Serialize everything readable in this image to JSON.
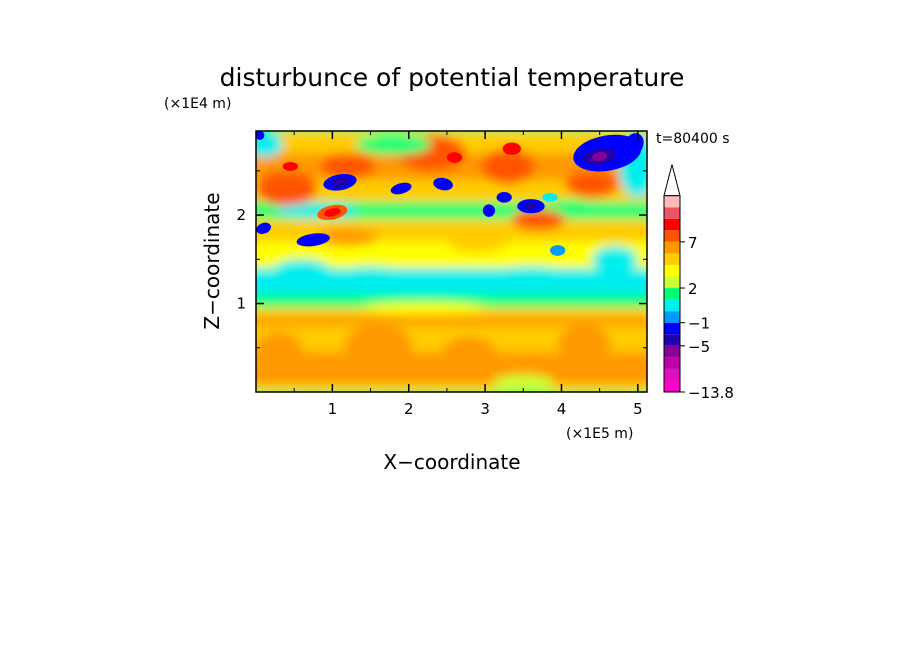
{
  "chart_data": {
    "type": "heatmap",
    "title": "disturbunce of potential temperature",
    "time_label": "t=80400 s",
    "xlabel": "X−coordinate",
    "ylabel": "Z−coordinate",
    "x_scale_label": "(×1E5 m)",
    "y_scale_label": "(×1E4 m)",
    "xlim": [
      0,
      5.12
    ],
    "ylim": [
      0,
      2.95
    ],
    "x_ticks": [
      {
        "value": 1,
        "label": "1"
      },
      {
        "value": 2,
        "label": "2"
      },
      {
        "value": 3,
        "label": "3"
      },
      {
        "value": 4,
        "label": "4"
      },
      {
        "value": 5,
        "label": "5"
      }
    ],
    "y_ticks": [
      {
        "value": 1,
        "label": "1"
      },
      {
        "value": 2,
        "label": "2"
      }
    ],
    "colorbar": {
      "colors_bottom_to_top": [
        "#ff00cc",
        "#dd11bb",
        "#bb00aa",
        "#880099",
        "#2200aa",
        "#0000ff",
        "#0099ff",
        "#00eeee",
        "#00ff77",
        "#ccff33",
        "#ffff00",
        "#ffcc00",
        "#ff9900",
        "#ff5500",
        "#ff0000",
        "#ee5566",
        "#ffbbbb"
      ],
      "extend_top": true,
      "tick_labels": [
        {
          "label": "−13.8",
          "bin_edge": 0
        },
        {
          "label": "−5",
          "bin_edge": 4
        },
        {
          "label": "−1",
          "bin_edge": 6
        },
        {
          "label": "2",
          "bin_edge": 9
        },
        {
          "label": "7",
          "bin_edge": 13
        }
      ]
    }
  }
}
